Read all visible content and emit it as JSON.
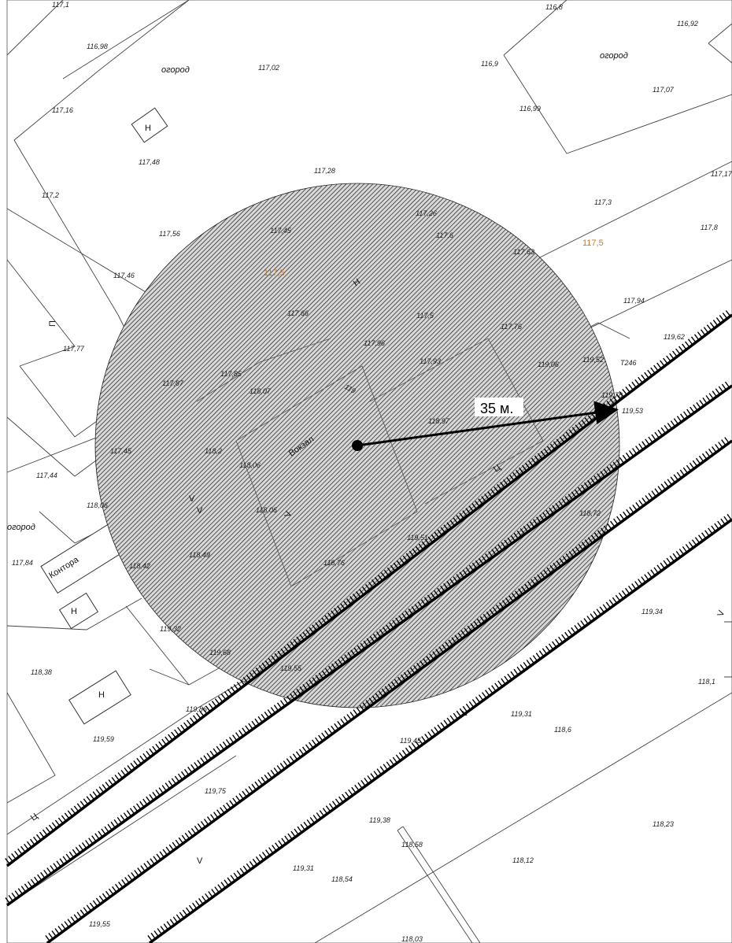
{
  "radius_label": "35 м.",
  "building_labels": {
    "station": "Вокзал",
    "office": "Контора"
  },
  "symbols": {
    "n": "Н",
    "p": "П",
    "ts": "Ц",
    "v": "V",
    "t246": "Т246"
  },
  "land_labels": {
    "garden_1": "огород",
    "garden_2": "огород",
    "garden_3": "огород"
  },
  "elevations": {
    "e01": "117,1",
    "e02": "116,98",
    "e03": "117,02",
    "e04": "117,16",
    "e05": "117,48",
    "e06": "117,28",
    "e07": "117,2",
    "e08": "117,56",
    "e09": "117,45",
    "e10": "117,46",
    "e11": "117,77",
    "e12": "117,87",
    "e13": "117,85",
    "e14": "118,07",
    "e15": "117,96",
    "e16": "117,66",
    "e17": "117,44",
    "e18": "117,45",
    "e19": "118,06",
    "e20": "117,84",
    "e21": "118,42",
    "e22": "118,49",
    "e23": "118,2",
    "e24": "118,06",
    "e25": "119,32",
    "e26": "119,68",
    "e27": "118,38",
    "e28": "119,59",
    "e29": "119,86",
    "e30": "119,75",
    "e31": "119,55",
    "e32": "119,31",
    "e33": "118,54",
    "e34": "118,03",
    "e35": "119,38",
    "e36": "118,58",
    "e37": "118,12",
    "e38": "118,23",
    "e39": "119,45",
    "e40": "119,31",
    "e41": "118,6",
    "e42": "118,1",
    "e43": "119,34",
    "e44": "119,55",
    "e45": "118,76",
    "e46": "119,51",
    "e47": "118,72",
    "e48": "116,8",
    "e49": "116,92",
    "e50": "116,9",
    "e51": "116,99",
    "e52": "117,07",
    "e53": "117,17",
    "e54": "117,3",
    "e55": "117,8",
    "e56": "117,26",
    "e57": "117,6",
    "e58": "117,63",
    "e59": "117,94",
    "e60": "117,5",
    "e61": "117,76",
    "e62": "119,62",
    "e63": "117,93",
    "e64": "119,06",
    "e65": "119,52",
    "e66": "119,78",
    "e67": "119,53",
    "e68": "118,97",
    "e69": "119",
    "e70": "118,06"
  },
  "elevations_orange": {
    "o1": "117,5",
    "o2": "117,5"
  },
  "colors": {
    "line": "#444444",
    "hatch": "#1a1a1a",
    "rail": "#000000",
    "orange_text": "#c77a2a"
  }
}
